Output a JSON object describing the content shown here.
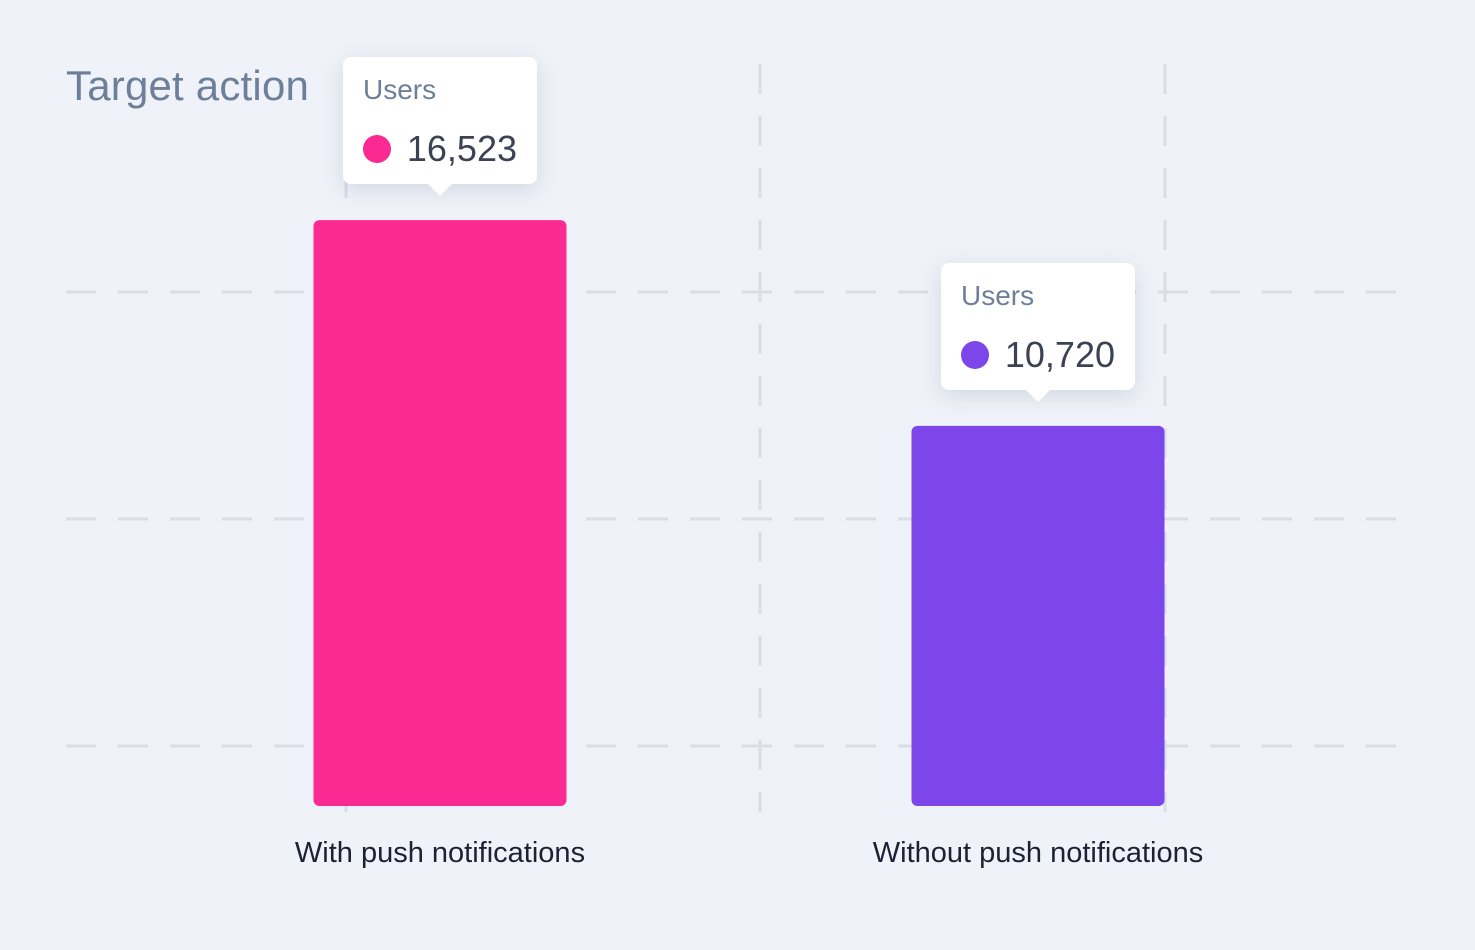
{
  "chart_data": {
    "type": "bar",
    "title": "Target action",
    "categories": [
      "With push notifications",
      "Without push notifications"
    ],
    "series": [
      {
        "name": "Users",
        "values": [
          16523,
          10720
        ],
        "value_labels": [
          "16,523",
          "10,720"
        ],
        "colors": [
          "#fb2a92",
          "#7c46ea"
        ]
      }
    ],
    "ylim": [
      0,
      18500
    ],
    "grid": true,
    "xlabel": "",
    "ylabel": ""
  },
  "colors": {
    "background": "#eff2f8",
    "grid": "#d9dde6",
    "title": "#6e7f99",
    "category_label": "#1c2233"
  }
}
